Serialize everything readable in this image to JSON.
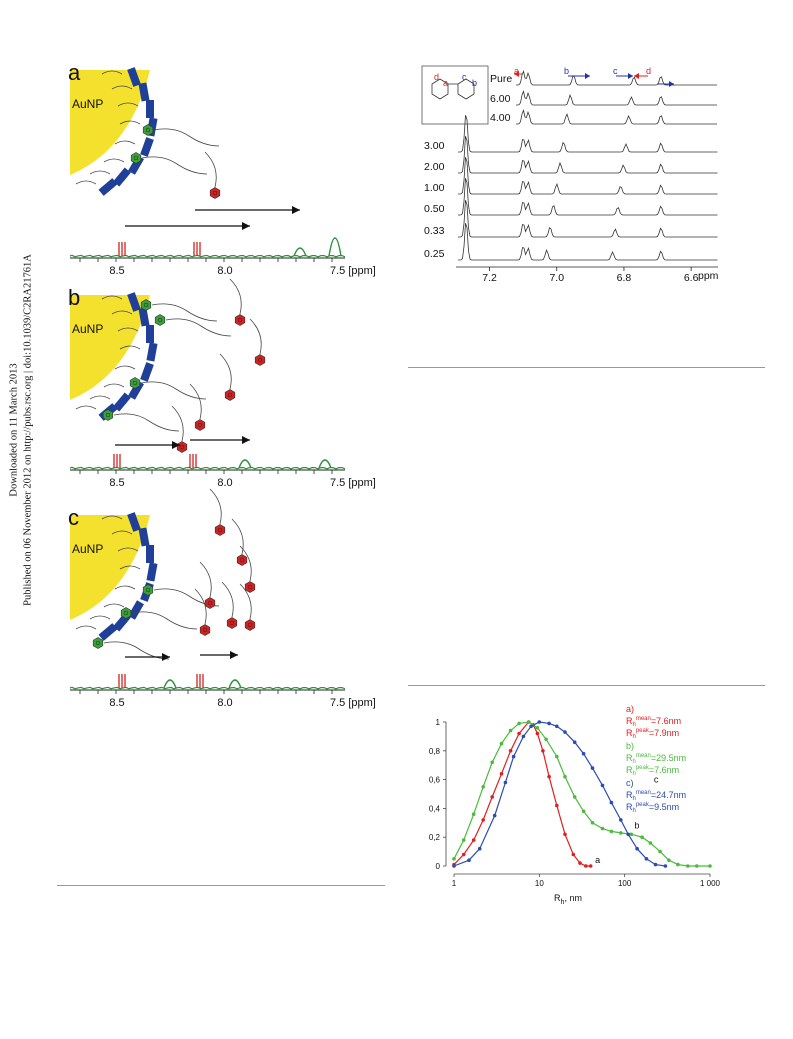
{
  "sidebar": {
    "line1": "Downloaded on 11 March 2013",
    "line2": "Published on 06 November 2012 on http://pubs.rsc.org | doi:10.1039/C2RA21761A"
  },
  "colors": {
    "gold": "#f4e12d",
    "blue": "#1f3f98",
    "green": "#3aa13a",
    "red": "#d22222",
    "spectrum_green": "#2f8f3a"
  },
  "left_figure": {
    "panels": [
      {
        "label": "a",
        "core": "AuNP",
        "ticks": [
          "8.5",
          "8.0",
          "7.5 [ppm]"
        ]
      },
      {
        "label": "b",
        "core": "AuNP",
        "ticks": [
          "8.5",
          "8.0",
          "7.5 [ppm]"
        ]
      },
      {
        "label": "c",
        "core": "AuNP",
        "ticks": [
          "8.5",
          "8.0",
          "7.5 [ppm]"
        ]
      }
    ]
  },
  "nmr_figure": {
    "row_labels": [
      "Pure",
      "6.00",
      "4.00",
      "3.00",
      "2.00",
      "1.00",
      "0.50",
      "0.33",
      "0.25"
    ],
    "ticks": [
      "7.2",
      "7.0",
      "6.8",
      "6.6"
    ],
    "unit": "ppm",
    "peak_labels": [
      "a",
      "b",
      "c",
      "d"
    ],
    "inset_labels": [
      "d",
      "a",
      "c",
      "b"
    ]
  },
  "chart_data": {
    "type": "line",
    "xscale": "log",
    "xlabel": "R",
    "xlabel_sub": "h",
    "xlabel_unit": ", nm",
    "xlim": [
      1,
      1000
    ],
    "ylim": [
      0,
      1
    ],
    "x_ticks": [
      "1",
      "10",
      "100",
      "1 000"
    ],
    "y_ticks": [
      "0",
      "0,2",
      "0,4",
      "0,6",
      "0,8",
      "1"
    ],
    "series": [
      {
        "name": "a",
        "color": "#e02020",
        "x": [
          1,
          1.3,
          1.7,
          2.2,
          2.8,
          3.6,
          4.6,
          5.8,
          7.5,
          8.5,
          9.5,
          11,
          13,
          16,
          20,
          25,
          30,
          35,
          40
        ],
        "y": [
          0.01,
          0.08,
          0.18,
          0.32,
          0.48,
          0.64,
          0.8,
          0.92,
          1.0,
          0.98,
          0.92,
          0.8,
          0.62,
          0.42,
          0.22,
          0.08,
          0.02,
          0.0,
          0.0
        ]
      },
      {
        "name": "b",
        "color": "#4cba3c",
        "x": [
          1,
          1.3,
          1.7,
          2.2,
          2.8,
          3.6,
          4.6,
          5.8,
          7.5,
          9.5,
          12,
          16,
          20,
          26,
          33,
          42,
          55,
          70,
          90,
          120,
          160,
          200,
          260,
          330,
          420,
          550,
          700,
          1000
        ],
        "y": [
          0.05,
          0.18,
          0.36,
          0.55,
          0.72,
          0.85,
          0.94,
          0.99,
          1.0,
          0.96,
          0.88,
          0.76,
          0.62,
          0.48,
          0.38,
          0.3,
          0.26,
          0.24,
          0.23,
          0.22,
          0.2,
          0.16,
          0.1,
          0.04,
          0.01,
          0.0,
          0.0,
          0.0
        ]
      },
      {
        "name": "c",
        "color": "#2b4cb0",
        "x": [
          1,
          1.5,
          2,
          3,
          4,
          5,
          6.5,
          8,
          10,
          13,
          16,
          20,
          26,
          33,
          42,
          55,
          70,
          90,
          110,
          140,
          180,
          230,
          300
        ],
        "y": [
          0.0,
          0.04,
          0.12,
          0.35,
          0.58,
          0.76,
          0.9,
          0.97,
          1.0,
          0.99,
          0.97,
          0.93,
          0.86,
          0.78,
          0.68,
          0.56,
          0.44,
          0.32,
          0.22,
          0.12,
          0.05,
          0.01,
          0.0
        ]
      }
    ],
    "legend": [
      {
        "head": "a)",
        "mean": "=7.6nm",
        "peak": "=7.9nm",
        "color": "#e02020"
      },
      {
        "head": "b)",
        "mean": "=29.5nm",
        "peak": "=7.6nm",
        "color": "#4cba3c"
      },
      {
        "head": "c)",
        "mean": "=24.7nm",
        "peak": "=9.5nm",
        "color": "#2b4cb0"
      }
    ],
    "legend_symbol": "R",
    "legend_sub": "h",
    "legend_mean_sup": "mean",
    "legend_peak_sup": "peak",
    "curve_labels": [
      "a",
      "b",
      "c"
    ],
    "legend_placement": "top-right"
  }
}
